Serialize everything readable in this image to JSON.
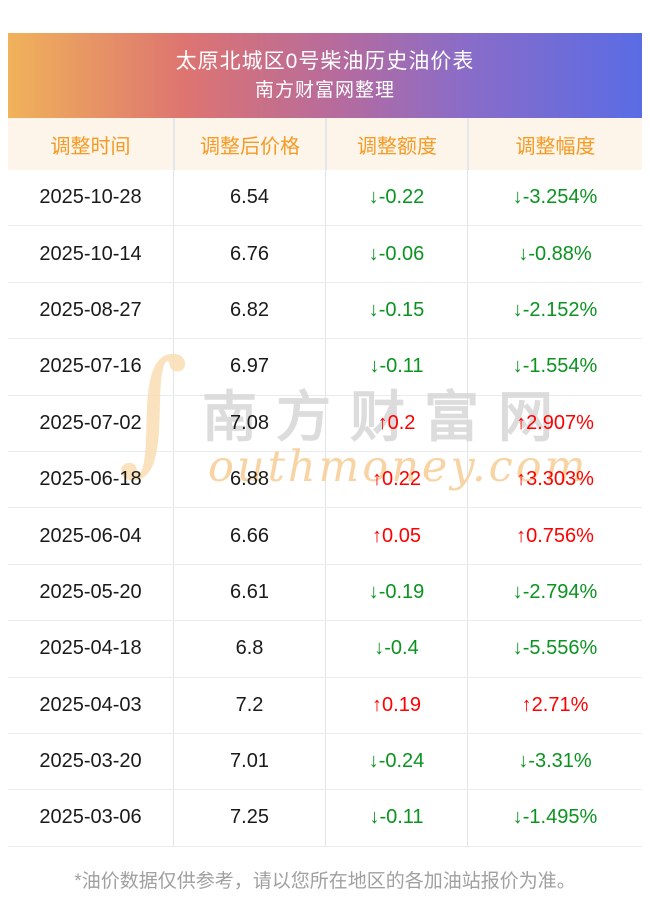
{
  "banner": {
    "title": "太原北城区0号柴油历史油价表",
    "subtitle": "南方财富网整理"
  },
  "table": {
    "columns": [
      "调整时间",
      "调整后价格",
      "调整额度",
      "调整幅度"
    ],
    "rows": [
      {
        "date": "2025-10-28",
        "price": "6.54",
        "amount": "↓-0.22",
        "pct": "↓-3.254%",
        "direction": "down"
      },
      {
        "date": "2025-10-14",
        "price": "6.76",
        "amount": "↓-0.06",
        "pct": "↓-0.88%",
        "direction": "down"
      },
      {
        "date": "2025-08-27",
        "price": "6.82",
        "amount": "↓-0.15",
        "pct": "↓-2.152%",
        "direction": "down"
      },
      {
        "date": "2025-07-16",
        "price": "6.97",
        "amount": "↓-0.11",
        "pct": "↓-1.554%",
        "direction": "down"
      },
      {
        "date": "2025-07-02",
        "price": "7.08",
        "amount": "↑0.2",
        "pct": "↑2.907%",
        "direction": "up"
      },
      {
        "date": "2025-06-18",
        "price": "6.88",
        "amount": "↑0.22",
        "pct": "↑3.303%",
        "direction": "up"
      },
      {
        "date": "2025-06-04",
        "price": "6.66",
        "amount": "↑0.05",
        "pct": "↑0.756%",
        "direction": "up"
      },
      {
        "date": "2025-05-20",
        "price": "6.61",
        "amount": "↓-0.19",
        "pct": "↓-2.794%",
        "direction": "down"
      },
      {
        "date": "2025-04-18",
        "price": "6.8",
        "amount": "↓-0.4",
        "pct": "↓-5.556%",
        "direction": "down"
      },
      {
        "date": "2025-04-03",
        "price": "7.2",
        "amount": "↑0.19",
        "pct": "↑2.71%",
        "direction": "up"
      },
      {
        "date": "2025-03-20",
        "price": "7.01",
        "amount": "↓-0.24",
        "pct": "↓-3.31%",
        "direction": "down"
      },
      {
        "date": "2025-03-06",
        "price": "7.25",
        "amount": "↓-0.11",
        "pct": "↓-1.495%",
        "direction": "down"
      }
    ]
  },
  "watermark": {
    "swash": "∫",
    "cn": "南方财富网",
    "en": "outhmoney.com"
  },
  "footer": {
    "note": "*油价数据仅供参考，请以您所在地区的各加油站报价为准。"
  },
  "colors": {
    "up": "#fe0000",
    "down": "#0b9320",
    "header_text": "#f59b25",
    "header_bg": "#fdf4ea",
    "banner_gradient_start": "#f0b25a",
    "banner_gradient_end": "#5a6ce4"
  }
}
